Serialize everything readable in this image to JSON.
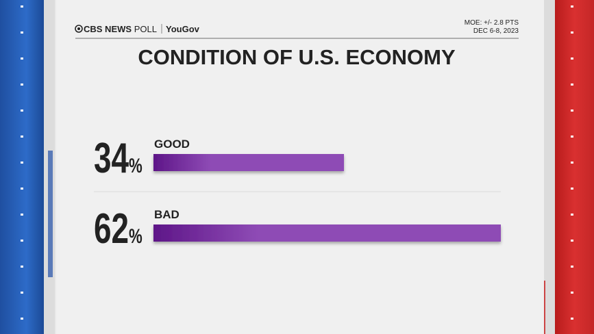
{
  "chart_data": {
    "type": "bar",
    "orientation": "horizontal",
    "title": "CONDITION OF U.S. ECONOMY",
    "source": [
      "CBS NEWS",
      "POLL",
      "YouGov"
    ],
    "notes": [
      "MOE: +/- 2.8 PTS",
      "DEC 6-8, 2023"
    ],
    "categories": [
      "GOOD",
      "BAD"
    ],
    "values": [
      34,
      62
    ],
    "value_labels": [
      "34%",
      "62%"
    ],
    "color": "#8e4bb5",
    "xlim": [
      0,
      62
    ]
  }
}
